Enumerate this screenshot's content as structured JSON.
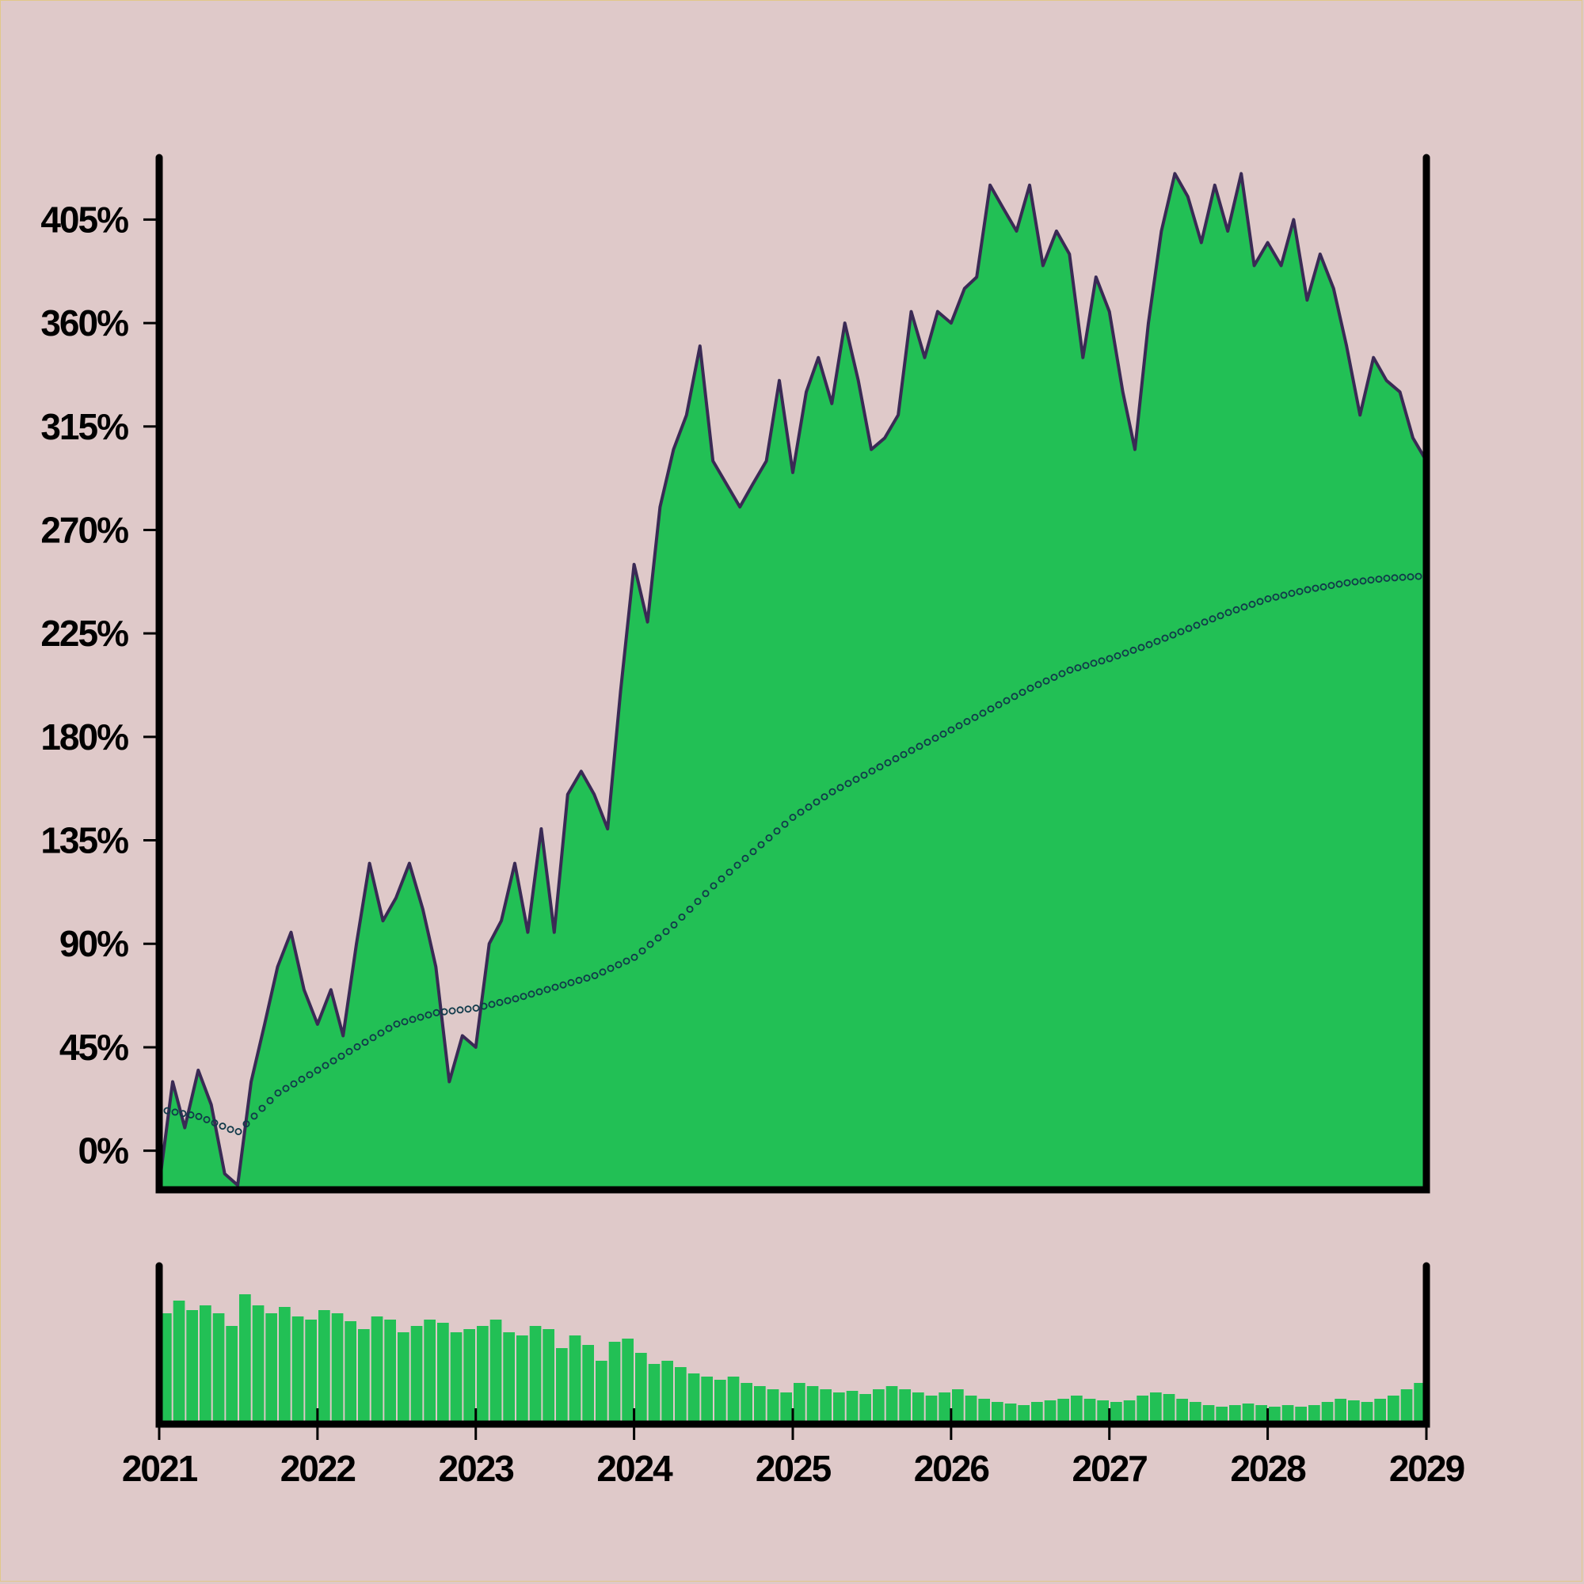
{
  "chart_data": {
    "type": "area",
    "title": "",
    "xlabel": "",
    "ylabel": "",
    "xlim": [
      "2021-01-01",
      "2029-01-01"
    ],
    "ylim": [
      -17,
      432
    ],
    "x_ticks": [
      "2021",
      "2022",
      "2023",
      "2024",
      "2025",
      "2026",
      "2027",
      "2028",
      "2029"
    ],
    "y_ticks": [
      "0%",
      "45%",
      "90%",
      "135%",
      "180%",
      "225%",
      "270%",
      "315%",
      "360%",
      "405%"
    ],
    "y_tick_values": [
      0,
      45,
      90,
      135,
      180,
      225,
      270,
      315,
      360,
      405
    ],
    "grid": false,
    "legend": "none",
    "colors": {
      "background": "#dfc9c9",
      "area_fill": "#22c055",
      "line": "#3a2a55",
      "moving_average": "#113a4a",
      "volume": "#22c055",
      "axis": "#000000"
    },
    "series": [
      {
        "kind": "area-line",
        "x": [
          "2021-01-01",
          "2021-02-01",
          "2021-03-01",
          "2021-04-01",
          "2021-05-01",
          "2021-06-01",
          "2021-07-01",
          "2021-08-01",
          "2021-09-01",
          "2021-10-01",
          "2021-11-01",
          "2021-12-01",
          "2022-01-01",
          "2022-02-01",
          "2022-03-01",
          "2022-04-01",
          "2022-05-01",
          "2022-06-01",
          "2022-07-01",
          "2022-08-01",
          "2022-09-01",
          "2022-10-01",
          "2022-11-01",
          "2022-12-01",
          "2023-01-01",
          "2023-02-01",
          "2023-03-01",
          "2023-04-01",
          "2023-05-01",
          "2023-06-01",
          "2023-07-01",
          "2023-08-01",
          "2023-09-01",
          "2023-10-01",
          "2023-11-01",
          "2023-12-01",
          "2024-01-01",
          "2024-02-01",
          "2024-03-01",
          "2024-04-01",
          "2024-05-01",
          "2024-06-01",
          "2024-07-01",
          "2024-08-01",
          "2024-09-01",
          "2024-10-01",
          "2024-11-01",
          "2024-12-01",
          "2025-01-01",
          "2025-02-01",
          "2025-03-01",
          "2025-04-01",
          "2025-05-01",
          "2025-06-01",
          "2025-07-01",
          "2025-08-01",
          "2025-09-01",
          "2025-10-01",
          "2025-11-01",
          "2025-12-01",
          "2026-01-01",
          "2026-02-01",
          "2026-03-01",
          "2026-04-01",
          "2026-05-01",
          "2026-06-01",
          "2026-07-01",
          "2026-08-01",
          "2026-09-01",
          "2026-10-01",
          "2026-11-01",
          "2026-12-01",
          "2027-01-01",
          "2027-02-01",
          "2027-03-01",
          "2027-04-01",
          "2027-05-01",
          "2027-06-01",
          "2027-07-01",
          "2027-08-01",
          "2027-09-01",
          "2027-10-01",
          "2027-11-01",
          "2027-12-01",
          "2028-01-01",
          "2028-02-01",
          "2028-03-01",
          "2028-04-01",
          "2028-05-01",
          "2028-06-01",
          "2028-07-01",
          "2028-08-01",
          "2028-09-01",
          "2028-10-01",
          "2028-11-01",
          "2028-12-01",
          "2029-01-01"
        ],
        "values": [
          -15,
          30,
          10,
          35,
          20,
          -10,
          -15,
          30,
          55,
          80,
          95,
          70,
          55,
          70,
          50,
          90,
          125,
          100,
          110,
          125,
          105,
          80,
          30,
          50,
          45,
          90,
          100,
          125,
          95,
          140,
          95,
          155,
          165,
          155,
          140,
          200,
          255,
          230,
          280,
          305,
          320,
          350,
          300,
          290,
          280,
          290,
          300,
          335,
          295,
          330,
          345,
          325,
          360,
          335,
          305,
          310,
          320,
          365,
          345,
          365,
          360,
          375,
          380,
          420,
          410,
          400,
          420,
          385,
          400,
          390,
          345,
          380,
          365,
          330,
          305,
          360,
          400,
          425,
          415,
          395,
          420,
          400,
          425,
          385,
          395,
          385,
          405,
          370,
          390,
          375,
          350,
          320,
          345,
          335,
          330,
          310,
          300
        ]
      },
      {
        "kind": "moving-average",
        "name": "",
        "x": [
          "2021-01-01",
          "2021-04-01",
          "2021-07-01",
          "2021-10-01",
          "2022-01-01",
          "2022-04-01",
          "2022-07-01",
          "2022-10-01",
          "2023-01-01",
          "2023-04-01",
          "2023-07-01",
          "2023-10-01",
          "2024-01-01",
          "2024-04-01",
          "2024-07-01",
          "2024-10-01",
          "2025-01-01",
          "2025-04-01",
          "2025-07-01",
          "2025-10-01",
          "2026-01-01",
          "2026-04-01",
          "2026-07-01",
          "2026-10-01",
          "2027-01-01",
          "2027-04-01",
          "2027-07-01",
          "2027-10-01",
          "2028-01-01",
          "2028-04-01",
          "2028-07-01",
          "2028-10-01",
          "2029-01-01"
        ],
        "values": [
          18,
          15,
          8,
          25,
          35,
          45,
          55,
          60,
          62,
          66,
          71,
          76,
          84,
          98,
          115,
          130,
          145,
          156,
          165,
          174,
          183,
          192,
          201,
          209,
          214,
          220,
          227,
          234,
          240,
          244,
          247,
          249,
          250
        ]
      }
    ],
    "volume": {
      "type": "bar",
      "x_start": "2021-01-01",
      "x_end": "2029-01-01",
      "count": 96,
      "values": [
        0.7,
        0.78,
        0.72,
        0.75,
        0.7,
        0.62,
        0.82,
        0.75,
        0.7,
        0.74,
        0.68,
        0.66,
        0.72,
        0.7,
        0.65,
        0.6,
        0.68,
        0.66,
        0.58,
        0.62,
        0.66,
        0.64,
        0.58,
        0.6,
        0.62,
        0.66,
        0.58,
        0.56,
        0.62,
        0.6,
        0.48,
        0.56,
        0.5,
        0.4,
        0.52,
        0.54,
        0.45,
        0.38,
        0.4,
        0.36,
        0.32,
        0.3,
        0.28,
        0.3,
        0.26,
        0.24,
        0.22,
        0.2,
        0.26,
        0.24,
        0.22,
        0.2,
        0.21,
        0.19,
        0.22,
        0.24,
        0.22,
        0.2,
        0.18,
        0.2,
        0.22,
        0.18,
        0.16,
        0.14,
        0.13,
        0.12,
        0.14,
        0.15,
        0.16,
        0.18,
        0.16,
        0.15,
        0.14,
        0.15,
        0.18,
        0.2,
        0.19,
        0.16,
        0.14,
        0.12,
        0.11,
        0.12,
        0.13,
        0.12,
        0.11,
        0.12,
        0.11,
        0.12,
        0.14,
        0.16,
        0.15,
        0.14,
        0.16,
        0.18,
        0.22,
        0.26
      ]
    }
  }
}
